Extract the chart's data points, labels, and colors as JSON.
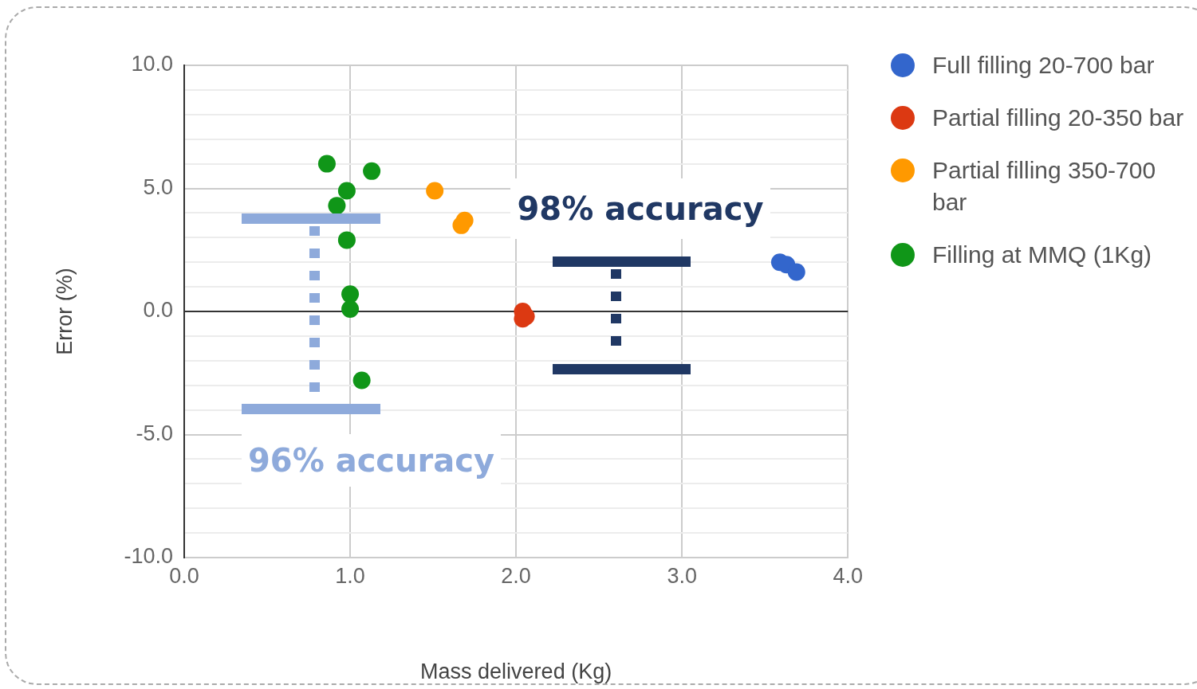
{
  "chart_data": {
    "type": "scatter",
    "xlabel": "Mass delivered (Kg)",
    "ylabel": "Error (%)",
    "series": [
      {
        "name": "Full filling 20-700 bar",
        "color": "#3366cc",
        "x": [
          3.59,
          3.63,
          3.69
        ],
        "values": [
          2.0,
          1.9,
          1.6
        ]
      },
      {
        "name": "Partial filling 20-350 bar",
        "color": "#dc3912",
        "x": [
          2.04,
          2.04,
          2.06
        ],
        "values": [
          0.0,
          -0.3,
          -0.2
        ]
      },
      {
        "name": "Partial filling 350-700 bar",
        "color": "#ff9900",
        "x": [
          1.51,
          1.69,
          1.67
        ],
        "values": [
          4.9,
          3.7,
          3.5
        ]
      },
      {
        "name": "Filling at MMQ (1Kg)",
        "color": "#109618",
        "x": [
          0.86,
          1.13,
          0.98,
          0.92,
          0.98,
          1.0,
          1.0,
          1.07
        ],
        "values": [
          6.0,
          5.7,
          4.9,
          4.3,
          2.9,
          0.7,
          0.1,
          -2.8
        ]
      }
    ],
    "xlim": [
      0,
      4
    ],
    "xticks": [
      {
        "value": 0,
        "label": "0.0"
      },
      {
        "value": 1,
        "label": "1.0"
      },
      {
        "value": 2,
        "label": "2.0"
      },
      {
        "value": 3,
        "label": "3.0"
      },
      {
        "value": 4,
        "label": "4.0"
      }
    ],
    "ylim": [
      -10,
      10
    ],
    "yticks": [
      {
        "value": -10,
        "label": "-10.0"
      },
      {
        "value": -9,
        "label": null
      },
      {
        "value": -8,
        "label": null
      },
      {
        "value": -7,
        "label": null
      },
      {
        "value": -6,
        "label": null
      },
      {
        "value": -5,
        "label": "-5.0"
      },
      {
        "value": -4,
        "label": null
      },
      {
        "value": -3,
        "label": null
      },
      {
        "value": -2,
        "label": null
      },
      {
        "value": -1,
        "label": null
      },
      {
        "value": 0,
        "label": "0.0"
      },
      {
        "value": 1,
        "label": null
      },
      {
        "value": 2,
        "label": null
      },
      {
        "value": 3,
        "label": null
      },
      {
        "value": 4,
        "label": null
      },
      {
        "value": 5,
        "label": "5.0"
      },
      {
        "value": 6,
        "label": null
      },
      {
        "value": 7,
        "label": null
      },
      {
        "value": 8,
        "label": null
      },
      {
        "value": 9,
        "label": null
      },
      {
        "value": 10,
        "label": "10.0"
      }
    ],
    "grid": true,
    "legend": "top right",
    "marker": "circle",
    "ref_lines": [
      {
        "axis": "y",
        "value": 0,
        "color": "#333333"
      }
    ],
    "annotations": [
      "96% accuracy",
      "98% accuracy"
    ]
  }
}
